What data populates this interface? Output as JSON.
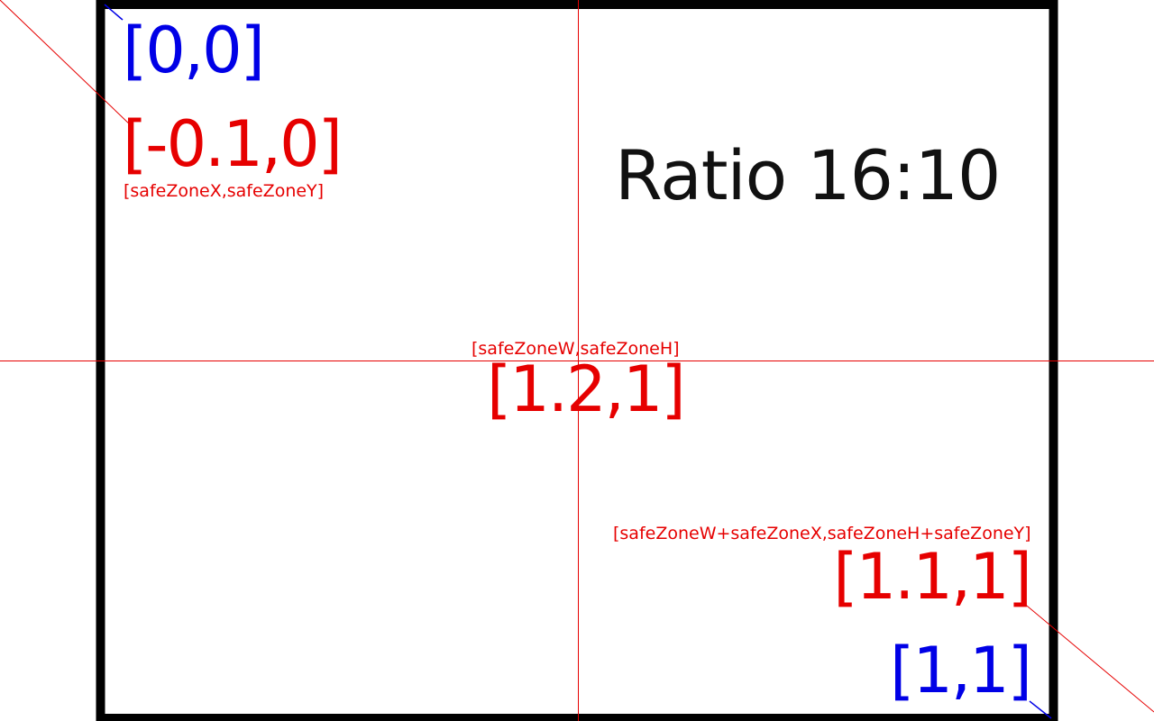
{
  "labels": {
    "screen_origin": "[0,0]",
    "safezone_origin": "[-0.1,0]",
    "safezone_origin_vars": "[safeZoneX,safeZoneY]",
    "ratio": "Ratio  16:10",
    "safezone_size_vars": "[safeZoneW,safeZoneH]",
    "safezone_size": "[1.2,1]",
    "safezone_end_vars": "[safeZoneW+safeZoneX,safeZoneH+safeZoneY]",
    "safezone_end": "[1.1,1]",
    "screen_end": "[1,1]"
  },
  "colors": {
    "screen_coords": "#0000e6",
    "safezone_coords": "#e60000",
    "frame": "#000000",
    "text": "#111111"
  }
}
